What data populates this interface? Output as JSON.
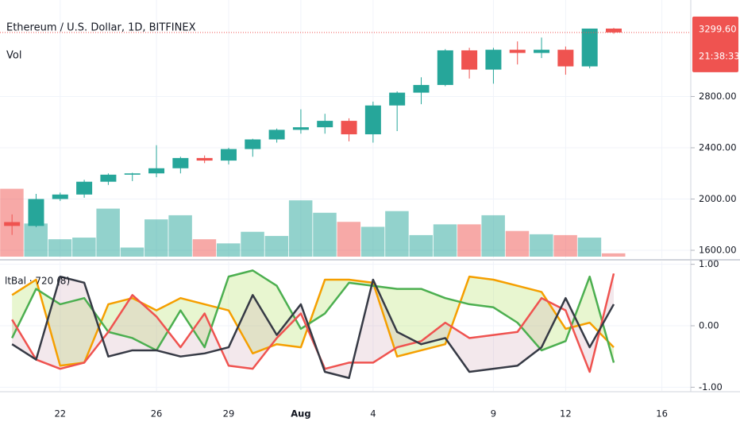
{
  "chart_data": {
    "type": "candlestick",
    "title": "Ethereum / U.S. Dollar, 1D, BITFINEX",
    "x": [
      20,
      21,
      22,
      23,
      24,
      25,
      26,
      27,
      28,
      29,
      30,
      31,
      32,
      33,
      34,
      35,
      36,
      37,
      38,
      39,
      40,
      41,
      42,
      43,
      44,
      45
    ],
    "xlim": [
      19.5,
      48.2
    ],
    "xticks": [
      {
        "value": 22,
        "label": "22"
      },
      {
        "value": 26,
        "label": "26"
      },
      {
        "value": 29,
        "label": "29"
      },
      {
        "value": 32,
        "label": "Aug"
      },
      {
        "value": 35,
        "label": "4"
      },
      {
        "value": 40,
        "label": "9"
      },
      {
        "value": 43,
        "label": "12"
      },
      {
        "value": 47,
        "label": "16"
      }
    ],
    "open": [
      1820,
      1790,
      2000,
      2035,
      2135,
      2190,
      2200,
      2240,
      2320,
      2300,
      2390,
      2465,
      2540,
      2560,
      2610,
      2505,
      2730,
      2830,
      2890,
      3160,
      3010,
      3165,
      3140,
      3165,
      3035,
      3330
    ],
    "high": [
      1880,
      2040,
      2050,
      2150,
      2200,
      2205,
      2420,
      2330,
      2340,
      2400,
      2470,
      2550,
      2700,
      2665,
      2630,
      2760,
      2840,
      2950,
      3170,
      3180,
      3180,
      3230,
      3260,
      3190,
      3330,
      3335
    ],
    "low": [
      1720,
      1780,
      1985,
      2010,
      2110,
      2140,
      2170,
      2200,
      2280,
      2270,
      2330,
      2440,
      2510,
      2510,
      2450,
      2440,
      2530,
      2740,
      2880,
      2940,
      2900,
      3050,
      3100,
      2970,
      3020,
      3290
    ],
    "close": [
      1790,
      2000,
      2035,
      2135,
      2190,
      2200,
      2240,
      2320,
      2300,
      2390,
      2465,
      2540,
      2560,
      2610,
      2505,
      2730,
      2830,
      2890,
      3160,
      3010,
      3165,
      3140,
      3165,
      3035,
      3330,
      3300
    ],
    "up_color": "#26a69a",
    "down_color": "#ef5350",
    "ylim": [
      1538,
      3553
    ],
    "yticks": [
      {
        "value": 2800,
        "label": "2800.00"
      },
      {
        "value": 2400,
        "label": "2400.00"
      },
      {
        "value": 2000,
        "label": "2000.00"
      },
      {
        "value": 1600,
        "label": "1600.00"
      }
    ],
    "grid": true,
    "last_price": {
      "value": 3299.6,
      "label": "3299.60"
    },
    "countdown": "21:38:33",
    "volume": {
      "name": "Vol",
      "ylim": [
        0,
        310
      ],
      "values": [
        82,
        40,
        21,
        23,
        58,
        11,
        45,
        50,
        21,
        16,
        30,
        25,
        68,
        53,
        42,
        36,
        55,
        26,
        39,
        39,
        50,
        31,
        27,
        26,
        23,
        4
      ]
    },
    "indicator": {
      "type": "line",
      "name": "ltBal · 720 (8)",
      "ylim": [
        -1.06,
        1.06
      ],
      "yticks": [
        {
          "value": 1,
          "label": "1.00"
        },
        {
          "value": 0,
          "label": "0.00"
        },
        {
          "value": -1,
          "label": "-1.00"
        }
      ],
      "series": [
        {
          "color": "#f59f00",
          "values": [
            0.5,
            0.75,
            -0.65,
            -0.6,
            0.35,
            0.45,
            0.25,
            0.45,
            0.35,
            0.25,
            -0.45,
            -0.3,
            -0.35,
            0.75,
            0.75,
            0.7,
            -0.5,
            -0.4,
            -0.3,
            0.8,
            0.75,
            0.65,
            0.55,
            -0.05,
            0.05,
            -0.35
          ]
        },
        {
          "color": "#4caf50",
          "values": [
            -0.2,
            0.6,
            0.35,
            0.45,
            -0.1,
            -0.2,
            -0.4,
            0.25,
            -0.35,
            0.8,
            0.9,
            0.65,
            -0.05,
            0.2,
            0.7,
            0.65,
            0.6,
            0.6,
            0.45,
            0.35,
            0.3,
            0.05,
            -0.4,
            -0.25,
            0.8,
            -0.6
          ]
        },
        {
          "color": "#ef5350",
          "values": [
            0.1,
            -0.55,
            -0.7,
            -0.6,
            -0.1,
            0.5,
            0.15,
            -0.35,
            0.2,
            -0.65,
            -0.7,
            -0.2,
            0.2,
            -0.7,
            -0.6,
            -0.6,
            -0.35,
            -0.25,
            0.05,
            -0.2,
            -0.15,
            -0.1,
            0.45,
            0.25,
            -0.75,
            0.85
          ]
        },
        {
          "color": "#363a45",
          "values": [
            -0.3,
            -0.55,
            0.8,
            0.7,
            -0.5,
            -0.4,
            -0.4,
            -0.5,
            -0.45,
            -0.35,
            0.5,
            -0.15,
            0.35,
            -0.75,
            -0.85,
            0.75,
            -0.1,
            -0.3,
            -0.2,
            -0.75,
            -0.7,
            -0.65,
            -0.35,
            0.45,
            -0.35,
            0.35
          ]
        }
      ]
    }
  }
}
